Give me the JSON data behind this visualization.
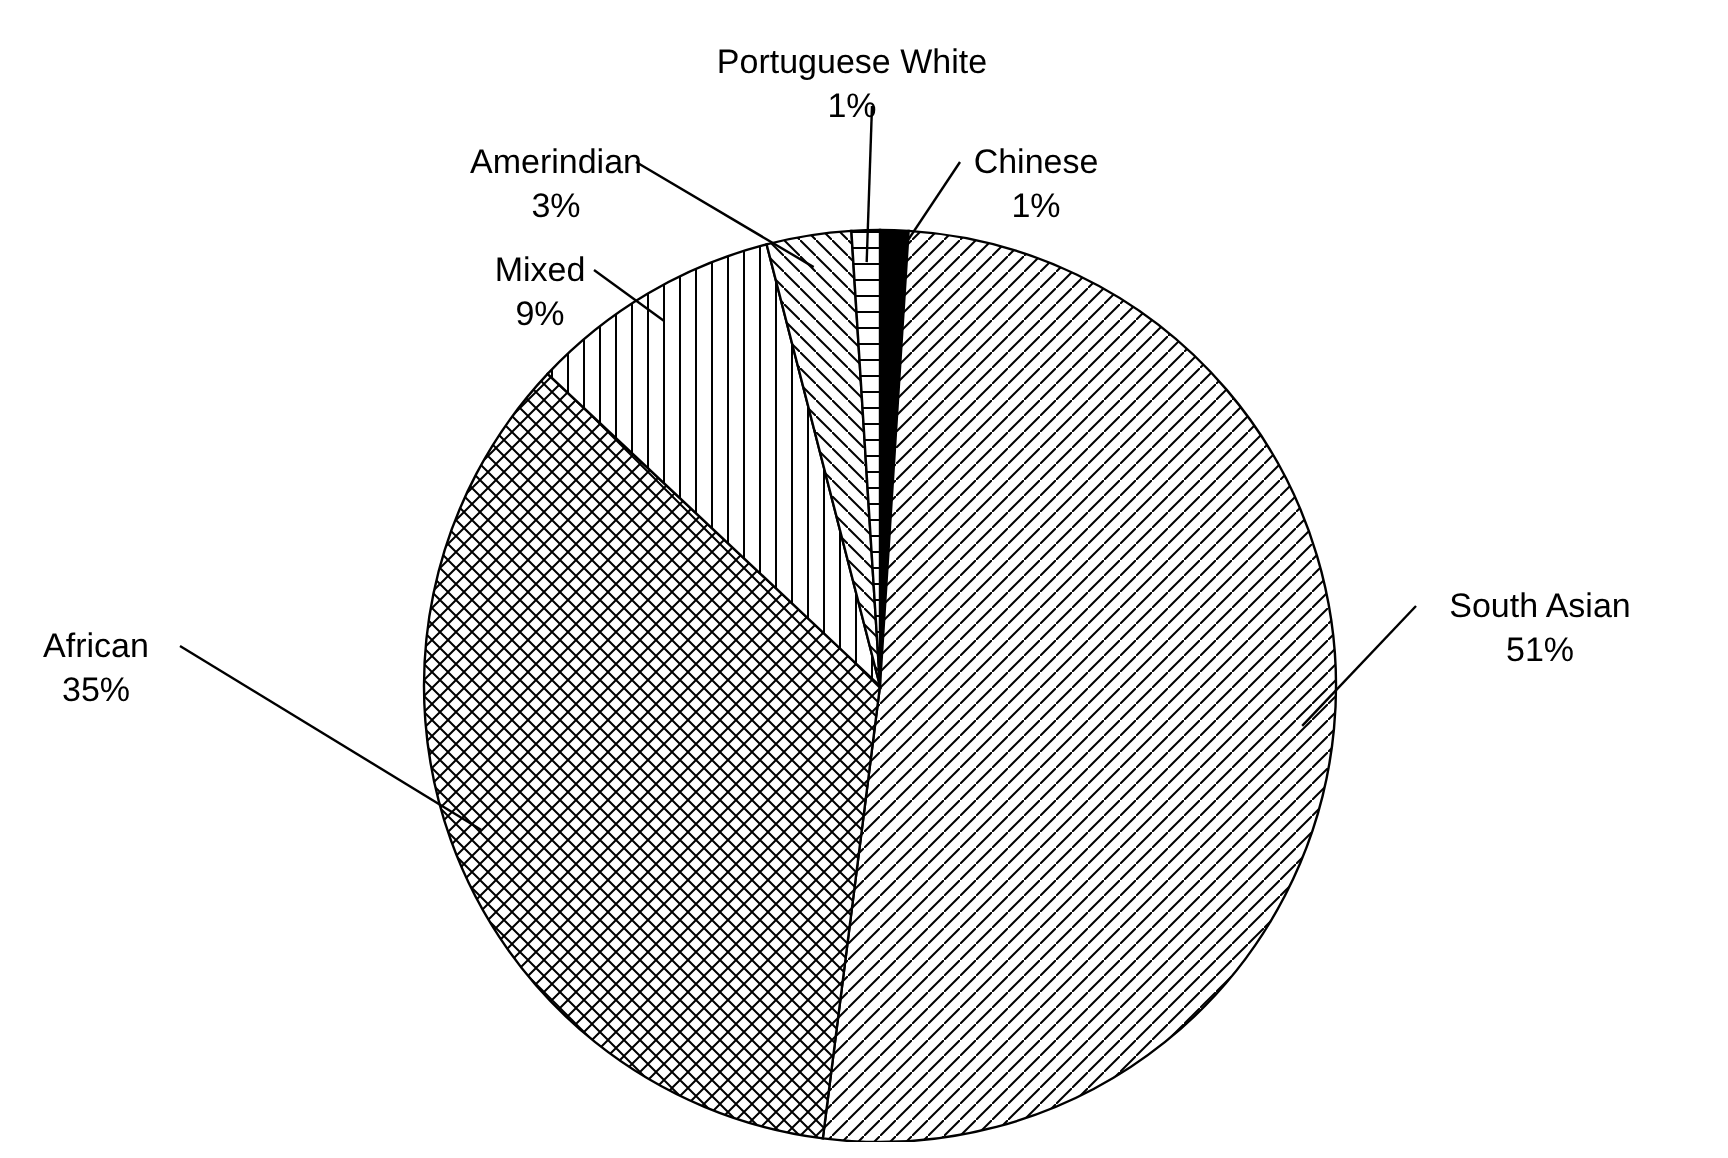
{
  "chart_data": {
    "type": "pie",
    "categories": [
      "Chinese",
      "South Asian",
      "African",
      "Mixed",
      "Amerindian",
      "Portuguese White"
    ],
    "values": [
      1,
      51,
      35,
      9,
      3,
      1
    ],
    "value_labels": [
      "1%",
      "51%",
      "35%",
      "9%",
      "3%",
      "1%"
    ],
    "colors": [
      "#000000",
      "#000000",
      "#000000",
      "#000000",
      "#000000",
      "#000000"
    ],
    "legend": false
  }
}
